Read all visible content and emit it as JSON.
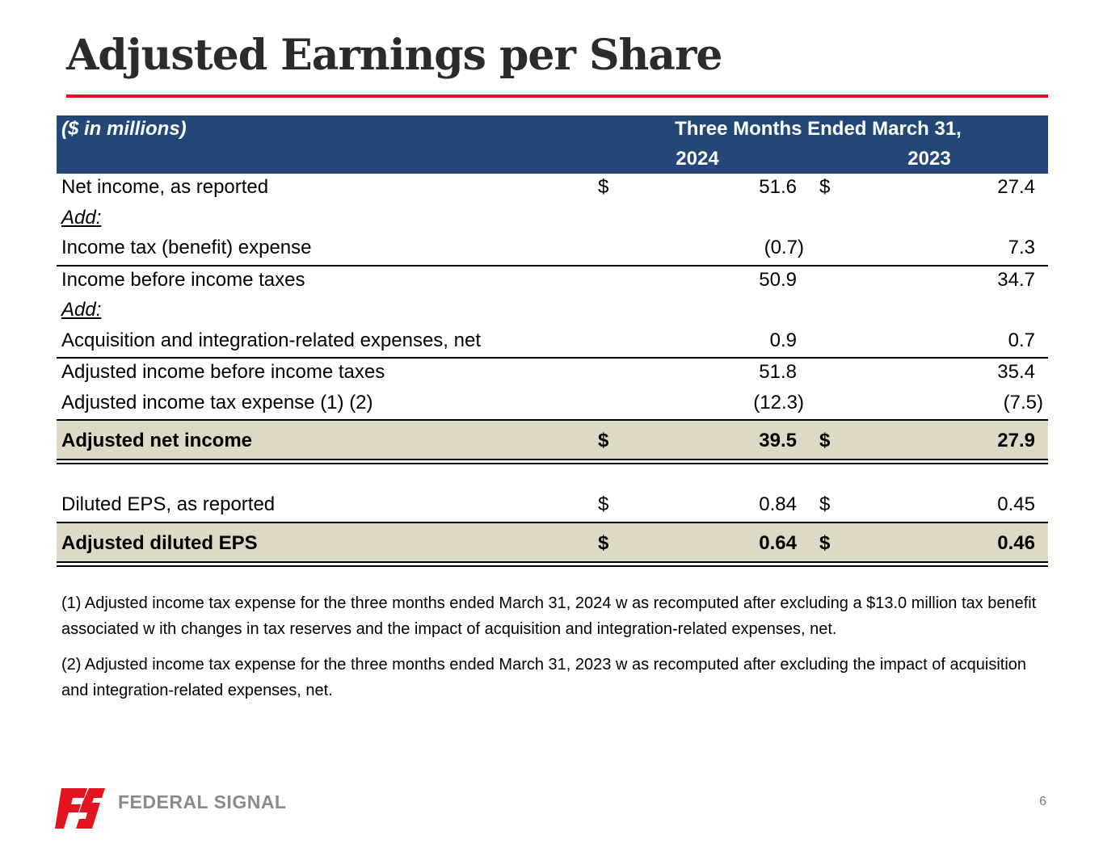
{
  "slide": {
    "title": "Adjusted Earnings per Share",
    "page_number": "6",
    "accent_color": "#e3141f",
    "header_color": "#234877",
    "highlight_color": "#ddd9c6"
  },
  "table": {
    "units": "($ in millions)",
    "period_header": "Three Months Ended March 31,",
    "year_1": "2024",
    "year_2": "2023",
    "rows": [
      {
        "label": "Net income, as reported",
        "d1": "$",
        "v1": "51.6",
        "d2": "$",
        "v2": "27.4"
      },
      {
        "label": "Add:"
      },
      {
        "label": "Income tax (benefit) expense",
        "v1": "(0.7)",
        "v2": "7.3"
      },
      {
        "label": "Income before income taxes",
        "v1": "50.9",
        "v2": "34.7"
      },
      {
        "label": "Add:"
      },
      {
        "label": "Acquisition and integration-related expenses, net",
        "v1": "0.9",
        "v2": "0.7"
      },
      {
        "label": "Adjusted income before income taxes",
        "v1": "51.8",
        "v2": "35.4"
      },
      {
        "label": "Adjusted income tax expense (1) (2)",
        "v1": "(12.3)",
        "v2": "(7.5)"
      },
      {
        "label": "Adjusted net income",
        "d1": "$",
        "v1": "39.5",
        "d2": "$",
        "v2": "27.9"
      },
      {
        "label": "Diluted EPS, as reported",
        "d1": "$",
        "v1": "0.84",
        "d2": "$",
        "v2": "0.45"
      },
      {
        "label": "Adjusted diluted EPS",
        "d1": "$",
        "v1": "0.64",
        "d2": "$",
        "v2": "0.46"
      }
    ]
  },
  "footnotes": [
    "(1) Adjusted income tax expense for the three months ended March 31, 2024 w as recomputed after excluding a $13.0 million tax benefit associated w ith changes in tax reserves and the impact of acquisition and integration-related expenses, net.",
    "(2) Adjusted income tax expense for the three months ended March 31, 2023 w as recomputed after excluding the impact of acquisition and integration-related expenses, net."
  ],
  "logo": {
    "text": "FEDERAL SIGNAL",
    "icon": "federal-signal-logo-icon"
  }
}
